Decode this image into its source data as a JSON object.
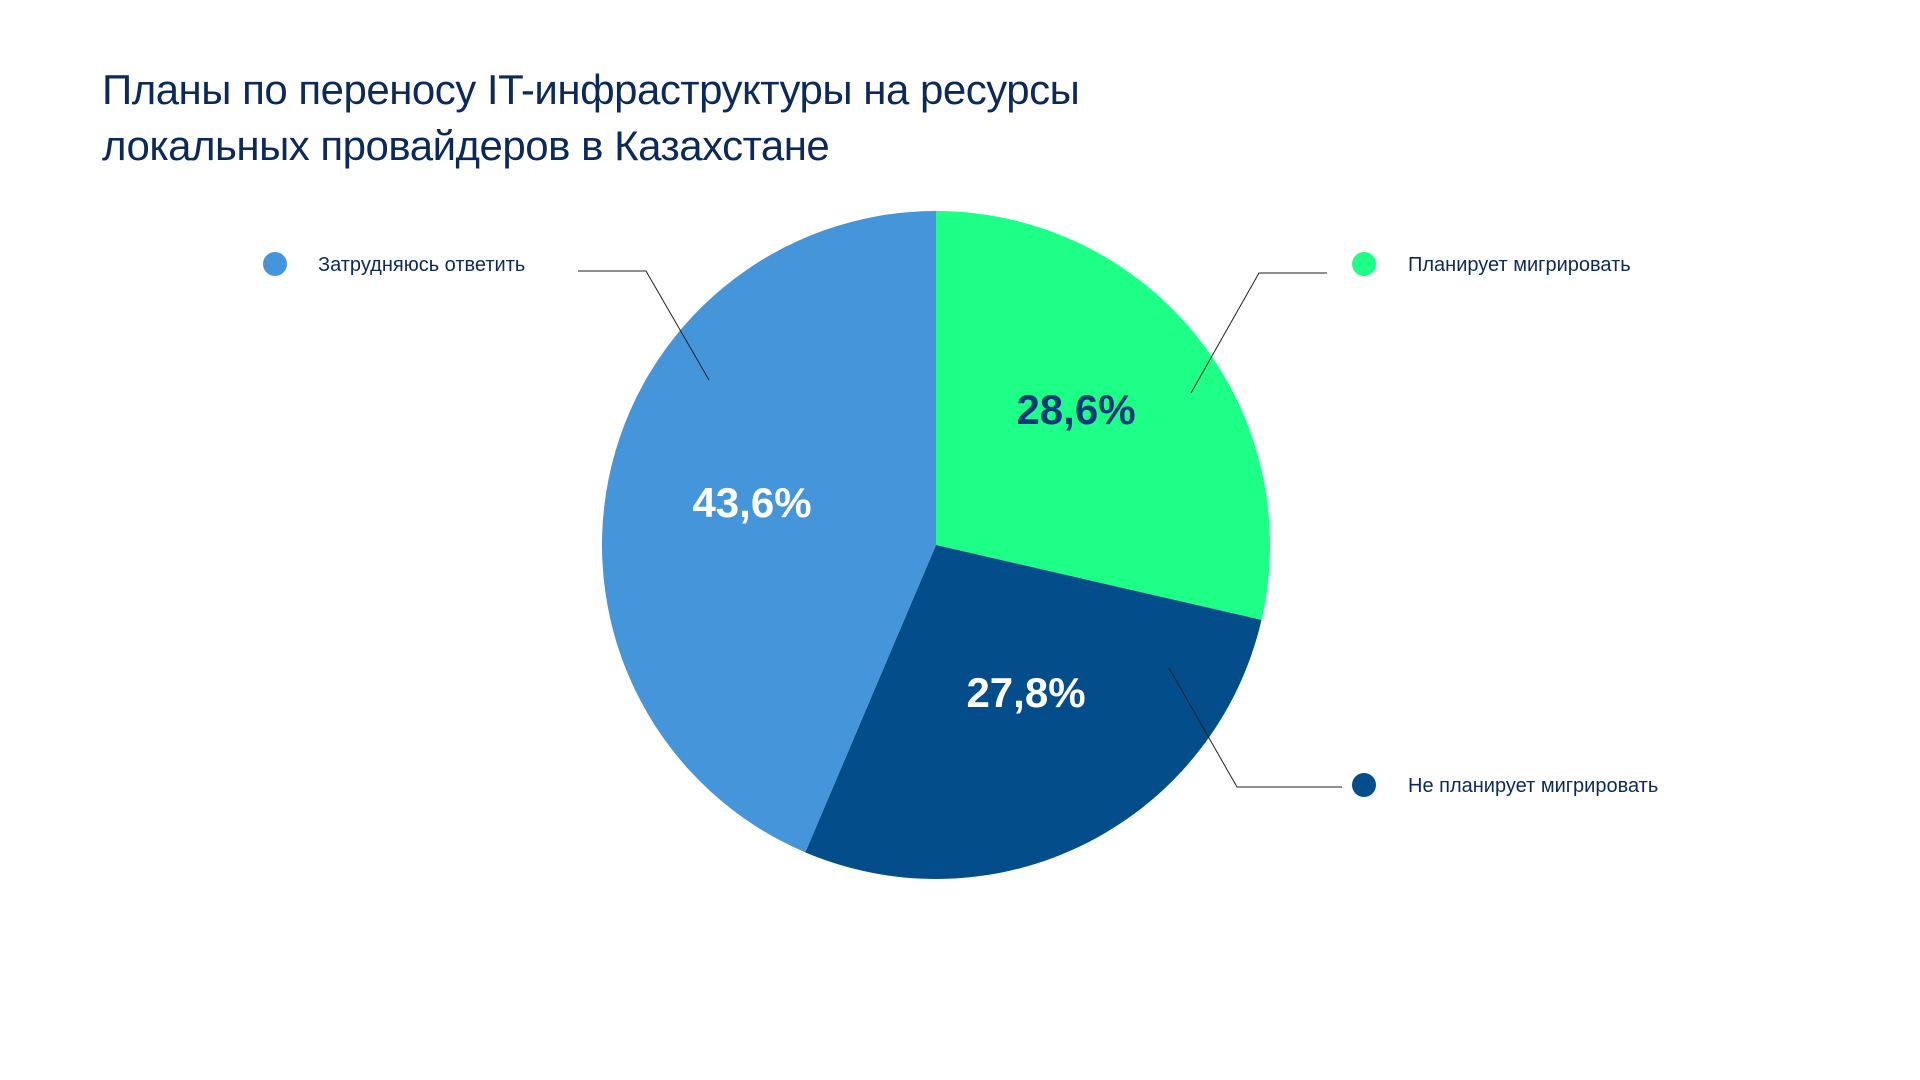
{
  "chart_data": {
    "type": "pie",
    "title_lines": [
      "Планы по переносу IT-инфраструктуры на ресурсы",
      "локальных провайдеров в Казахстане"
    ],
    "slices": [
      {
        "label": "Планирует мигрировать",
        "value": 28.6,
        "value_label": "28,6%",
        "color": "#1dff86",
        "text_color": "#0b3a7a"
      },
      {
        "label": "Не планирует мигрировать",
        "value": 27.8,
        "value_label": "27,8%",
        "color": "#034e8a",
        "text_color": "#ffffff"
      },
      {
        "label": "Затрудняюсь ответить",
        "value": 43.6,
        "value_label": "43,6%",
        "color": "#4495d9",
        "text_color": "#ffffff"
      }
    ],
    "start": "top",
    "direction": "clockwise",
    "legend_placement": "around-pie-with-leader-lines"
  }
}
